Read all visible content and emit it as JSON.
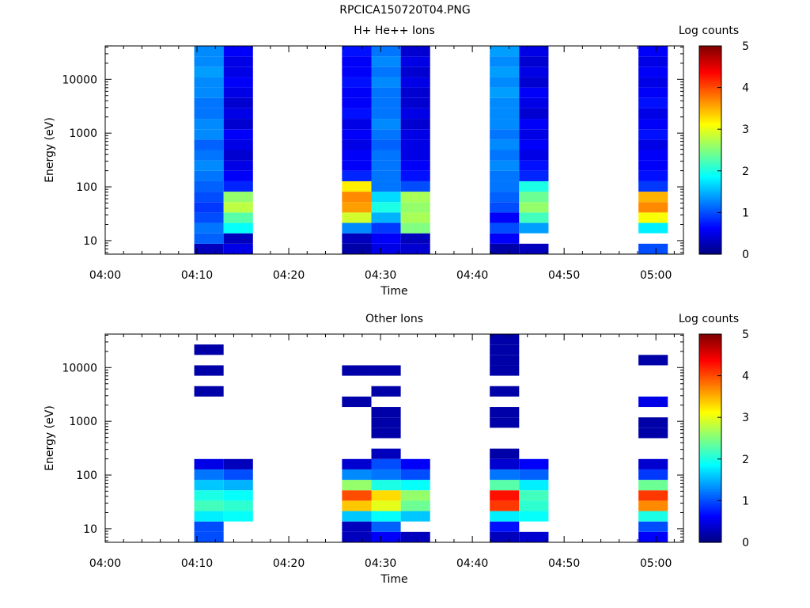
{
  "page_title": "RPCICA150720T04.PNG",
  "colorbar": {
    "label": "Log counts",
    "ticks": [
      "0",
      "1",
      "2",
      "3",
      "4",
      "5"
    ]
  },
  "chart_data": [
    {
      "type": "heatmap",
      "title": "H+ He++ Ions",
      "xlabel": "Time",
      "ylabel": "Energy (eV)",
      "x_ticks": [
        "04:00",
        "04:10",
        "04:20",
        "04:30",
        "04:40",
        "04:50",
        "05:00"
      ],
      "y_ticks": [
        "10",
        "100",
        "1000",
        "10000"
      ],
      "y_scale": "log",
      "ylim": [
        5.6,
        42000
      ],
      "xlim_minutes": [
        0,
        63
      ],
      "color_range": [
        0,
        5
      ],
      "columns": [
        {
          "start": 9.7,
          "end": 12.9,
          "levels": [
            0.3,
            1.1,
            1.2,
            1.0,
            0.9,
            1.0,
            1.1,
            1.2,
            1.3,
            1.2,
            1.1,
            1.3,
            1.3,
            1.2,
            1.2,
            1.3,
            1.3,
            1.4,
            1.3,
            1.3
          ]
        },
        {
          "start": 12.9,
          "end": 16.1,
          "levels": [
            0.5,
            0.3,
            1.9,
            2.3,
            2.8,
            2.6,
            0.8,
            0.6,
            0.5,
            0.4,
            0.5,
            0.6,
            0.4,
            0.5,
            0.4,
            0.5,
            0.6,
            0.5,
            0.5,
            0.6
          ]
        },
        {
          "start": 25.8,
          "end": 29.0,
          "levels": [
            0.2,
            0.3,
            1.3,
            2.9,
            3.6,
            3.7,
            3.2,
            0.8,
            0.6,
            0.6,
            0.5,
            0.6,
            0.5,
            0.7,
            0.6,
            0.6,
            0.7,
            0.6,
            0.6,
            0.7
          ]
        },
        {
          "start": 29.0,
          "end": 32.2,
          "levels": [
            0.5,
            0.6,
            0.9,
            1.5,
            2.0,
            1.7,
            1.2,
            1.2,
            1.2,
            1.2,
            1.1,
            1.2,
            1.3,
            1.2,
            1.2,
            1.2,
            1.3,
            1.2,
            1.3,
            1.2
          ]
        },
        {
          "start": 32.2,
          "end": 35.4,
          "levels": [
            0.4,
            0.3,
            2.5,
            2.7,
            2.6,
            2.7,
            1.0,
            0.7,
            0.6,
            0.5,
            0.5,
            0.5,
            0.4,
            0.5,
            0.4,
            0.4,
            0.5,
            0.4,
            0.5,
            0.4
          ]
        },
        {
          "start": 41.9,
          "end": 45.1,
          "levels": [
            0.2,
            0.6,
            1.0,
            0.6,
            1.0,
            1.1,
            1.2,
            1.2,
            1.3,
            1.2,
            1.3,
            1.2,
            1.3,
            1.3,
            1.3,
            1.4,
            1.3,
            1.4,
            1.3,
            1.4
          ]
        },
        {
          "start": 45.1,
          "end": 48.3,
          "levels": [
            0.3,
            null,
            1.4,
            2.2,
            2.6,
            2.4,
            2.0,
            0.8,
            0.7,
            0.5,
            0.6,
            0.5,
            0.6,
            0.4,
            0.5,
            0.6,
            0.4,
            0.5,
            0.4,
            0.5
          ]
        },
        {
          "start": 58.1,
          "end": 61.3,
          "levels": [
            1.0,
            null,
            1.8,
            3.1,
            3.7,
            3.5,
            0.9,
            0.7,
            0.6,
            0.6,
            0.5,
            0.7,
            0.6,
            0.5,
            0.7,
            0.6,
            0.5,
            0.6,
            0.5,
            0.6
          ]
        }
      ]
    },
    {
      "type": "heatmap",
      "title": "Other Ions",
      "xlabel": "Time",
      "ylabel": "Energy (eV)",
      "x_ticks": [
        "04:00",
        "04:10",
        "04:20",
        "04:30",
        "04:40",
        "04:50",
        "05:00"
      ],
      "y_ticks": [
        "10",
        "100",
        "1000",
        "10000"
      ],
      "y_scale": "log",
      "ylim": [
        5.6,
        42000
      ],
      "xlim_minutes": [
        0,
        63
      ],
      "color_range": [
        0,
        5
      ],
      "columns": [
        {
          "start": 9.7,
          "end": 12.9,
          "levels": [
            1.0,
            1.0,
            1.8,
            2.2,
            2.0,
            1.6,
            1.2,
            0.5,
            null,
            null,
            null,
            null,
            null,
            null,
            0.2,
            null,
            0.2,
            null,
            0.2,
            null
          ]
        },
        {
          "start": 12.9,
          "end": 16.1,
          "levels": [
            null,
            null,
            1.9,
            2.1,
            1.9,
            1.5,
            1.0,
            0.3,
            null,
            null,
            null,
            null,
            null,
            null,
            null,
            null,
            null,
            null,
            null,
            null
          ]
        },
        {
          "start": 25.8,
          "end": 29.0,
          "levels": [
            0.3,
            0.3,
            1.6,
            3.4,
            4.0,
            2.6,
            1.3,
            0.4,
            null,
            null,
            null,
            null,
            null,
            0.2,
            null,
            null,
            0.2,
            null,
            null,
            null
          ]
        },
        {
          "start": 29.0,
          "end": 32.2,
          "levels": [
            0.6,
            1.1,
            1.9,
            3.0,
            3.3,
            2.0,
            1.2,
            1.0,
            0.3,
            null,
            0.2,
            0.2,
            0.2,
            null,
            0.2,
            null,
            0.2,
            null,
            null,
            null
          ]
        },
        {
          "start": 32.2,
          "end": 35.4,
          "levels": [
            0.3,
            null,
            1.6,
            2.4,
            2.6,
            1.9,
            1.0,
            0.6,
            null,
            null,
            null,
            null,
            null,
            null,
            null,
            null,
            null,
            null,
            null,
            null
          ]
        },
        {
          "start": 41.9,
          "end": 45.1,
          "levels": [
            0.3,
            0.7,
            1.8,
            4.1,
            4.3,
            2.3,
            1.2,
            0.4,
            0.2,
            null,
            null,
            0.2,
            0.2,
            null,
            0.2,
            null,
            0.2,
            0.2,
            0.2,
            0.2
          ]
        },
        {
          "start": 45.1,
          "end": 48.3,
          "levels": [
            0.4,
            null,
            1.9,
            2.1,
            2.2,
            1.8,
            1.1,
            0.6,
            null,
            null,
            null,
            null,
            null,
            null,
            null,
            null,
            null,
            null,
            null,
            null
          ]
        },
        {
          "start": 58.1,
          "end": 61.3,
          "levels": [
            0.6,
            1.0,
            2.0,
            3.7,
            4.1,
            2.4,
            0.9,
            0.4,
            null,
            null,
            0.2,
            0.2,
            null,
            0.5,
            null,
            null,
            null,
            0.2,
            null,
            null
          ]
        }
      ]
    }
  ]
}
